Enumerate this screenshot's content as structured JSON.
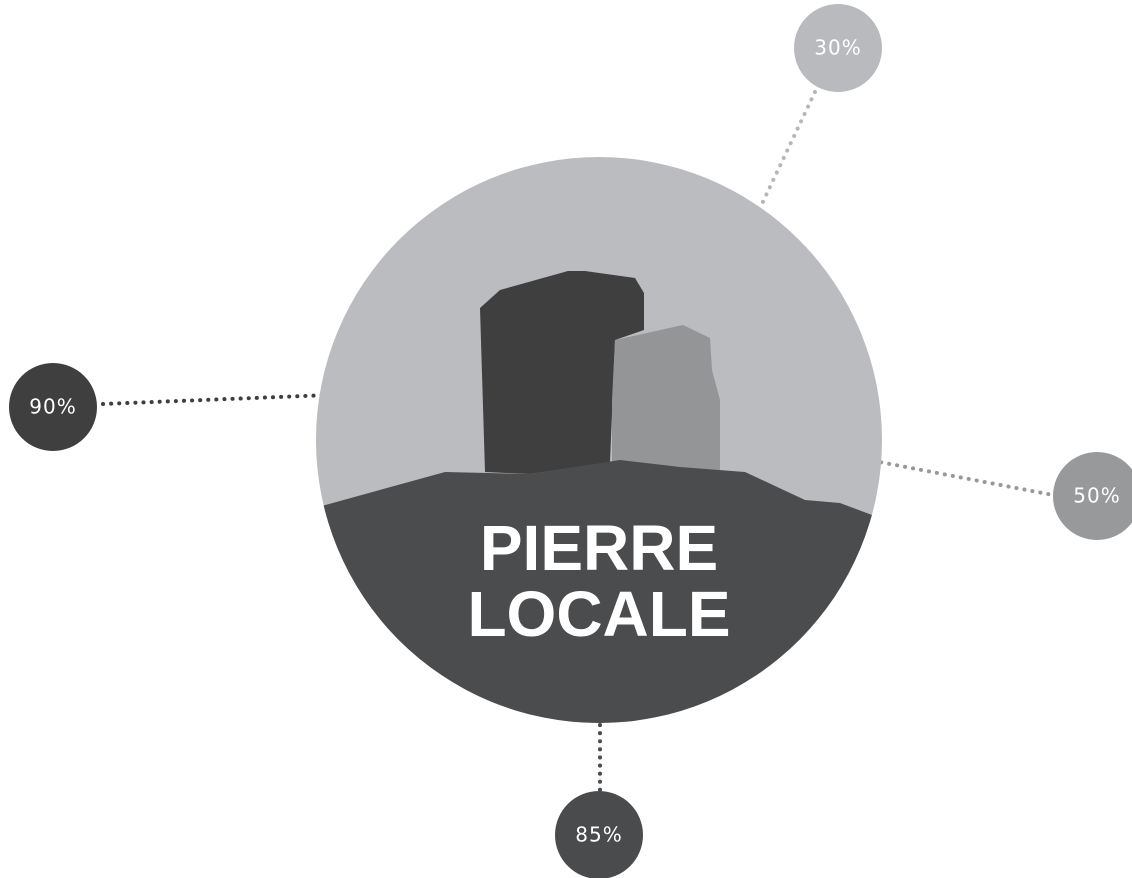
{
  "title": {
    "lines": [
      "PIERRE",
      "LOCALE"
    ]
  },
  "nodes": [
    {
      "label": "30%"
    },
    {
      "label": "90%"
    },
    {
      "label": "50%"
    },
    {
      "label": "85%"
    }
  ]
}
